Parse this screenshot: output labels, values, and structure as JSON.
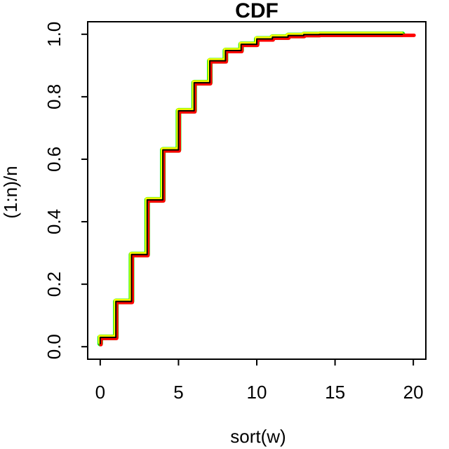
{
  "title": "CDF",
  "xlabel": "sort(w)",
  "ylabel": "(1:n)/n",
  "colors": {
    "green_line": "#00ee00",
    "red_line": "#ff0000",
    "yellow_line": "#ffff00",
    "black_line": "#000000",
    "axis": "#000000",
    "background": "#ffffff"
  },
  "chart_data": {
    "type": "line",
    "subtype": "ecdf-step",
    "title": "CDF",
    "xlabel": "sort(w)",
    "ylabel": "(1:n)/n",
    "xlim": [
      0,
      20
    ],
    "ylim": [
      0,
      1
    ],
    "grid": "off",
    "legend": "none",
    "x_ticks": {
      "values": [
        0,
        5,
        10,
        15,
        20
      ],
      "labels": [
        "0",
        "5",
        "10",
        "15",
        "20"
      ]
    },
    "y_ticks": {
      "values": [
        0.0,
        0.2,
        0.4,
        0.6,
        0.8,
        1.0
      ],
      "labels": [
        "0.0",
        "0.2",
        "0.4",
        "0.6",
        "0.8",
        "1.0"
      ]
    },
    "step_start_y": 0.01,
    "step_x": [
      0,
      1,
      2,
      3,
      4,
      5,
      6,
      7,
      8,
      9,
      10,
      11,
      12,
      13,
      14
    ],
    "step_cum": [
      0.03,
      0.145,
      0.295,
      0.47,
      0.63,
      0.755,
      0.845,
      0.915,
      0.948,
      0.968,
      0.985,
      0.991,
      0.996,
      0.999,
      1.0
    ],
    "series": [
      {
        "name": "ecdf-green",
        "color": "#00ee00",
        "width": 8,
        "dx": 0,
        "dy": 0,
        "end_x": 19.3
      },
      {
        "name": "ecdf-red",
        "color": "#ff0000",
        "width": 5,
        "dx": 1,
        "dy": 1.5,
        "end_x": 20
      },
      {
        "name": "ecdf-yellow",
        "color": "#ffff00",
        "width": 4,
        "dx": -1,
        "dy": -1.5,
        "end_x": 19.3
      },
      {
        "name": "ecdf-black",
        "color": "#000000",
        "width": 2,
        "dx": 0,
        "dy": 0,
        "end_x": 19.3
      }
    ]
  }
}
